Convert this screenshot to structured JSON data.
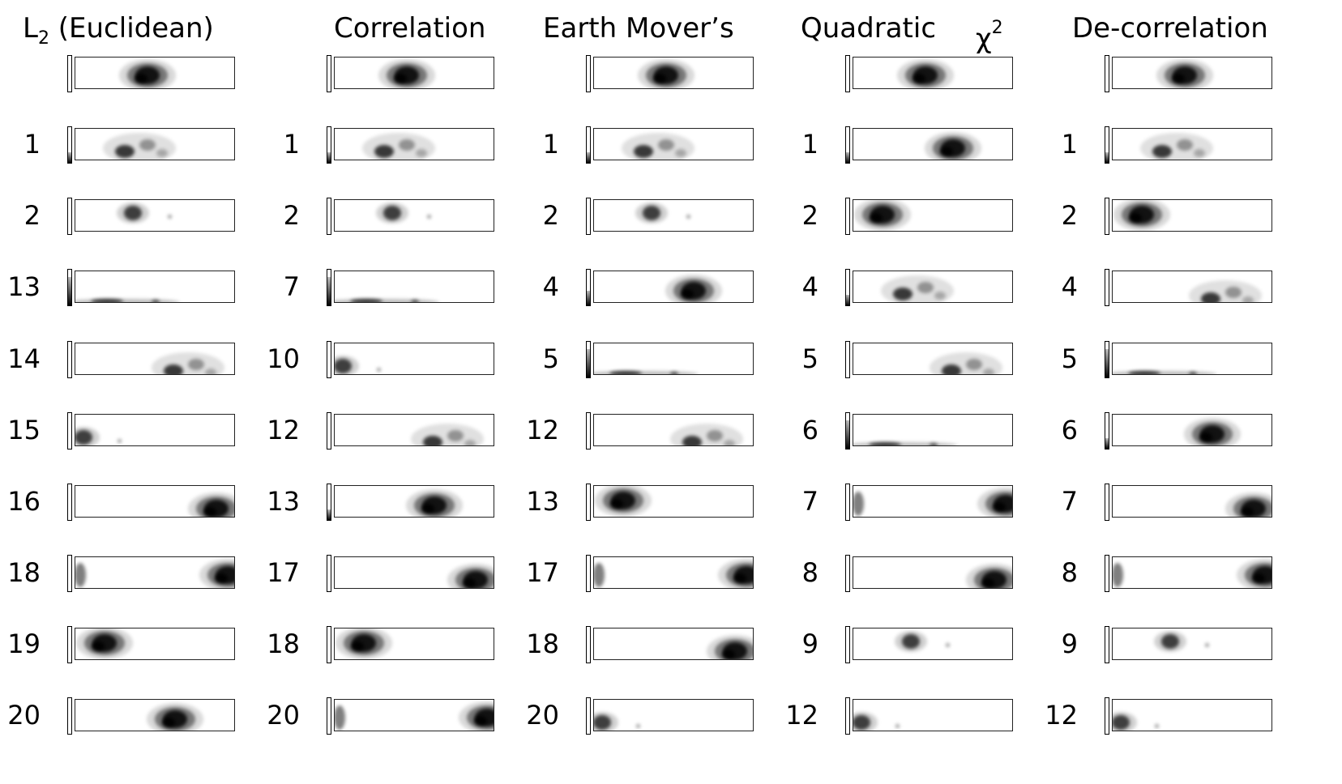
{
  "columns": [
    {
      "title": "L ₂ (Euclidean)",
      "title_parts": [
        "L",
        "2",
        "(Euclidean)"
      ],
      "rows": [
        {
          "rank": "",
          "blobs": [
            [
              "center",
              0.45,
              0.55,
              "dark"
            ]
          ],
          "bar": 0.0
        },
        {
          "rank": "1",
          "blobs": [
            [
              "left-center",
              0.4,
              0.6,
              "mixed"
            ]
          ],
          "bar": 0.3
        },
        {
          "rank": "2",
          "blobs": [
            [
              "left",
              0.36,
              0.4,
              "small"
            ]
          ],
          "bar": 0.0
        },
        {
          "rank": "13",
          "blobs": [
            [
              "bottom",
              0.3,
              0.95,
              "flat"
            ]
          ],
          "bar": 0.8
        },
        {
          "rank": "14",
          "blobs": [
            [
              "right",
              0.7,
              0.75,
              "mixed"
            ]
          ],
          "bar": 0.0
        },
        {
          "rank": "15",
          "blobs": [
            [
              "edge-left",
              0.05,
              0.7,
              "small"
            ]
          ],
          "bar": 0.0
        },
        {
          "rank": "16",
          "blobs": [
            [
              "right",
              0.88,
              0.7,
              "dark"
            ]
          ],
          "bar": 0.0
        },
        {
          "rank": "18",
          "blobs": [
            [
              "edge-both",
              0.95,
              0.55,
              "dark"
            ]
          ],
          "bar": 0.0
        },
        {
          "rank": "19",
          "blobs": [
            [
              "left",
              0.18,
              0.45,
              "dark"
            ]
          ],
          "bar": 0.0
        },
        {
          "rank": "20",
          "blobs": [
            [
              "center",
              0.62,
              0.6,
              "dark"
            ]
          ],
          "bar": 0.0
        }
      ]
    },
    {
      "title": "Correlation",
      "rows": [
        {
          "rank": "",
          "blobs": [
            [
              "center",
              0.45,
              0.55,
              "dark"
            ]
          ],
          "bar": 0.0
        },
        {
          "rank": "1",
          "blobs": [
            [
              "left-center",
              0.4,
              0.6,
              "mixed"
            ]
          ],
          "bar": 0.3
        },
        {
          "rank": "2",
          "blobs": [
            [
              "left",
              0.36,
              0.4,
              "small"
            ]
          ],
          "bar": 0.0
        },
        {
          "rank": "7",
          "blobs": [
            [
              "bottom",
              0.3,
              0.95,
              "flat"
            ]
          ],
          "bar": 0.8
        },
        {
          "rank": "10",
          "blobs": [
            [
              "edge-left",
              0.05,
              0.7,
              "small"
            ]
          ],
          "bar": 0.0
        },
        {
          "rank": "12",
          "blobs": [
            [
              "right",
              0.7,
              0.75,
              "mixed"
            ]
          ],
          "bar": 0.0
        },
        {
          "rank": "13",
          "blobs": [
            [
              "center",
              0.62,
              0.6,
              "dark"
            ]
          ],
          "bar": 0.3
        },
        {
          "rank": "17",
          "blobs": [
            [
              "right",
              0.88,
              0.7,
              "dark"
            ]
          ],
          "bar": 0.0
        },
        {
          "rank": "18",
          "blobs": [
            [
              "left",
              0.18,
              0.45,
              "dark"
            ]
          ],
          "bar": 0.0
        },
        {
          "rank": "20",
          "blobs": [
            [
              "edge-both",
              0.95,
              0.55,
              "dark"
            ]
          ],
          "bar": 0.0
        }
      ]
    },
    {
      "title": "Earth Mover’s",
      "rows": [
        {
          "rank": "",
          "blobs": [
            [
              "center",
              0.45,
              0.55,
              "dark"
            ]
          ],
          "bar": 0.0
        },
        {
          "rank": "1",
          "blobs": [
            [
              "left-center",
              0.4,
              0.6,
              "mixed"
            ]
          ],
          "bar": 0.3
        },
        {
          "rank": "2",
          "blobs": [
            [
              "left",
              0.36,
              0.4,
              "small"
            ]
          ],
          "bar": 0.0
        },
        {
          "rank": "4",
          "blobs": [
            [
              "center",
              0.62,
              0.6,
              "dark"
            ]
          ],
          "bar": 0.4
        },
        {
          "rank": "5",
          "blobs": [
            [
              "bottom",
              0.3,
              0.95,
              "flat"
            ]
          ],
          "bar": 0.8
        },
        {
          "rank": "12",
          "blobs": [
            [
              "right",
              0.7,
              0.75,
              "mixed"
            ]
          ],
          "bar": 0.0
        },
        {
          "rank": "13",
          "blobs": [
            [
              "left",
              0.18,
              0.45,
              "dark"
            ]
          ],
          "bar": 0.0
        },
        {
          "rank": "17",
          "blobs": [
            [
              "edge-both",
              0.95,
              0.55,
              "dark"
            ]
          ],
          "bar": 0.0
        },
        {
          "rank": "18",
          "blobs": [
            [
              "right",
              0.88,
              0.7,
              "dark"
            ]
          ],
          "bar": 0.0
        },
        {
          "rank": "20",
          "blobs": [
            [
              "edge-left",
              0.05,
              0.7,
              "small"
            ]
          ],
          "bar": 0.0
        }
      ]
    },
    {
      "title": "Quadratic",
      "chi_label": "χ",
      "chi_sup": "2",
      "rows": [
        {
          "rank": "",
          "blobs": [
            [
              "center",
              0.45,
              0.55,
              "dark"
            ]
          ],
          "bar": 0.0
        },
        {
          "rank": "1",
          "blobs": [
            [
              "center",
              0.62,
              0.6,
              "dark"
            ]
          ],
          "bar": 0.3
        },
        {
          "rank": "2",
          "blobs": [
            [
              "left",
              0.18,
              0.45,
              "dark"
            ]
          ],
          "bar": 0.0
        },
        {
          "rank": "4",
          "blobs": [
            [
              "left-center",
              0.4,
              0.6,
              "mixed"
            ]
          ],
          "bar": 0.3
        },
        {
          "rank": "5",
          "blobs": [
            [
              "right",
              0.7,
              0.75,
              "mixed"
            ]
          ],
          "bar": 0.0
        },
        {
          "rank": "6",
          "blobs": [
            [
              "bottom",
              0.3,
              0.95,
              "flat"
            ]
          ],
          "bar": 0.8
        },
        {
          "rank": "7",
          "blobs": [
            [
              "edge-both",
              0.95,
              0.55,
              "dark"
            ]
          ],
          "bar": 0.0
        },
        {
          "rank": "8",
          "blobs": [
            [
              "right",
              0.88,
              0.7,
              "dark"
            ]
          ],
          "bar": 0.0
        },
        {
          "rank": "9",
          "blobs": [
            [
              "left",
              0.36,
              0.4,
              "small"
            ]
          ],
          "bar": 0.0
        },
        {
          "rank": "12",
          "blobs": [
            [
              "edge-left",
              0.05,
              0.7,
              "small"
            ]
          ],
          "bar": 0.0
        }
      ]
    },
    {
      "title": "De-correlation",
      "rows": [
        {
          "rank": "",
          "blobs": [
            [
              "center",
              0.45,
              0.55,
              "dark"
            ]
          ],
          "bar": 0.0
        },
        {
          "rank": "1",
          "blobs": [
            [
              "left-center",
              0.4,
              0.6,
              "mixed"
            ]
          ],
          "bar": 0.3
        },
        {
          "rank": "2",
          "blobs": [
            [
              "left",
              0.18,
              0.45,
              "dark"
            ]
          ],
          "bar": 0.0
        },
        {
          "rank": "4",
          "blobs": [
            [
              "right",
              0.7,
              0.75,
              "mixed"
            ]
          ],
          "bar": 0.0
        },
        {
          "rank": "5",
          "blobs": [
            [
              "bottom",
              0.3,
              0.95,
              "flat"
            ]
          ],
          "bar": 0.8
        },
        {
          "rank": "6",
          "blobs": [
            [
              "center",
              0.62,
              0.6,
              "dark"
            ]
          ],
          "bar": 0.3
        },
        {
          "rank": "7",
          "blobs": [
            [
              "right",
              0.88,
              0.7,
              "dark"
            ]
          ],
          "bar": 0.0
        },
        {
          "rank": "8",
          "blobs": [
            [
              "edge-both",
              0.95,
              0.55,
              "dark"
            ]
          ],
          "bar": 0.0
        },
        {
          "rank": "9",
          "blobs": [
            [
              "left",
              0.36,
              0.4,
              "small"
            ]
          ],
          "bar": 0.0
        },
        {
          "rank": "12",
          "blobs": [
            [
              "edge-left",
              0.05,
              0.7,
              "small"
            ]
          ],
          "bar": 0.0
        }
      ]
    }
  ],
  "colors": {
    "ink": "#000000",
    "frame": "#222222",
    "background": "#ffffff"
  }
}
